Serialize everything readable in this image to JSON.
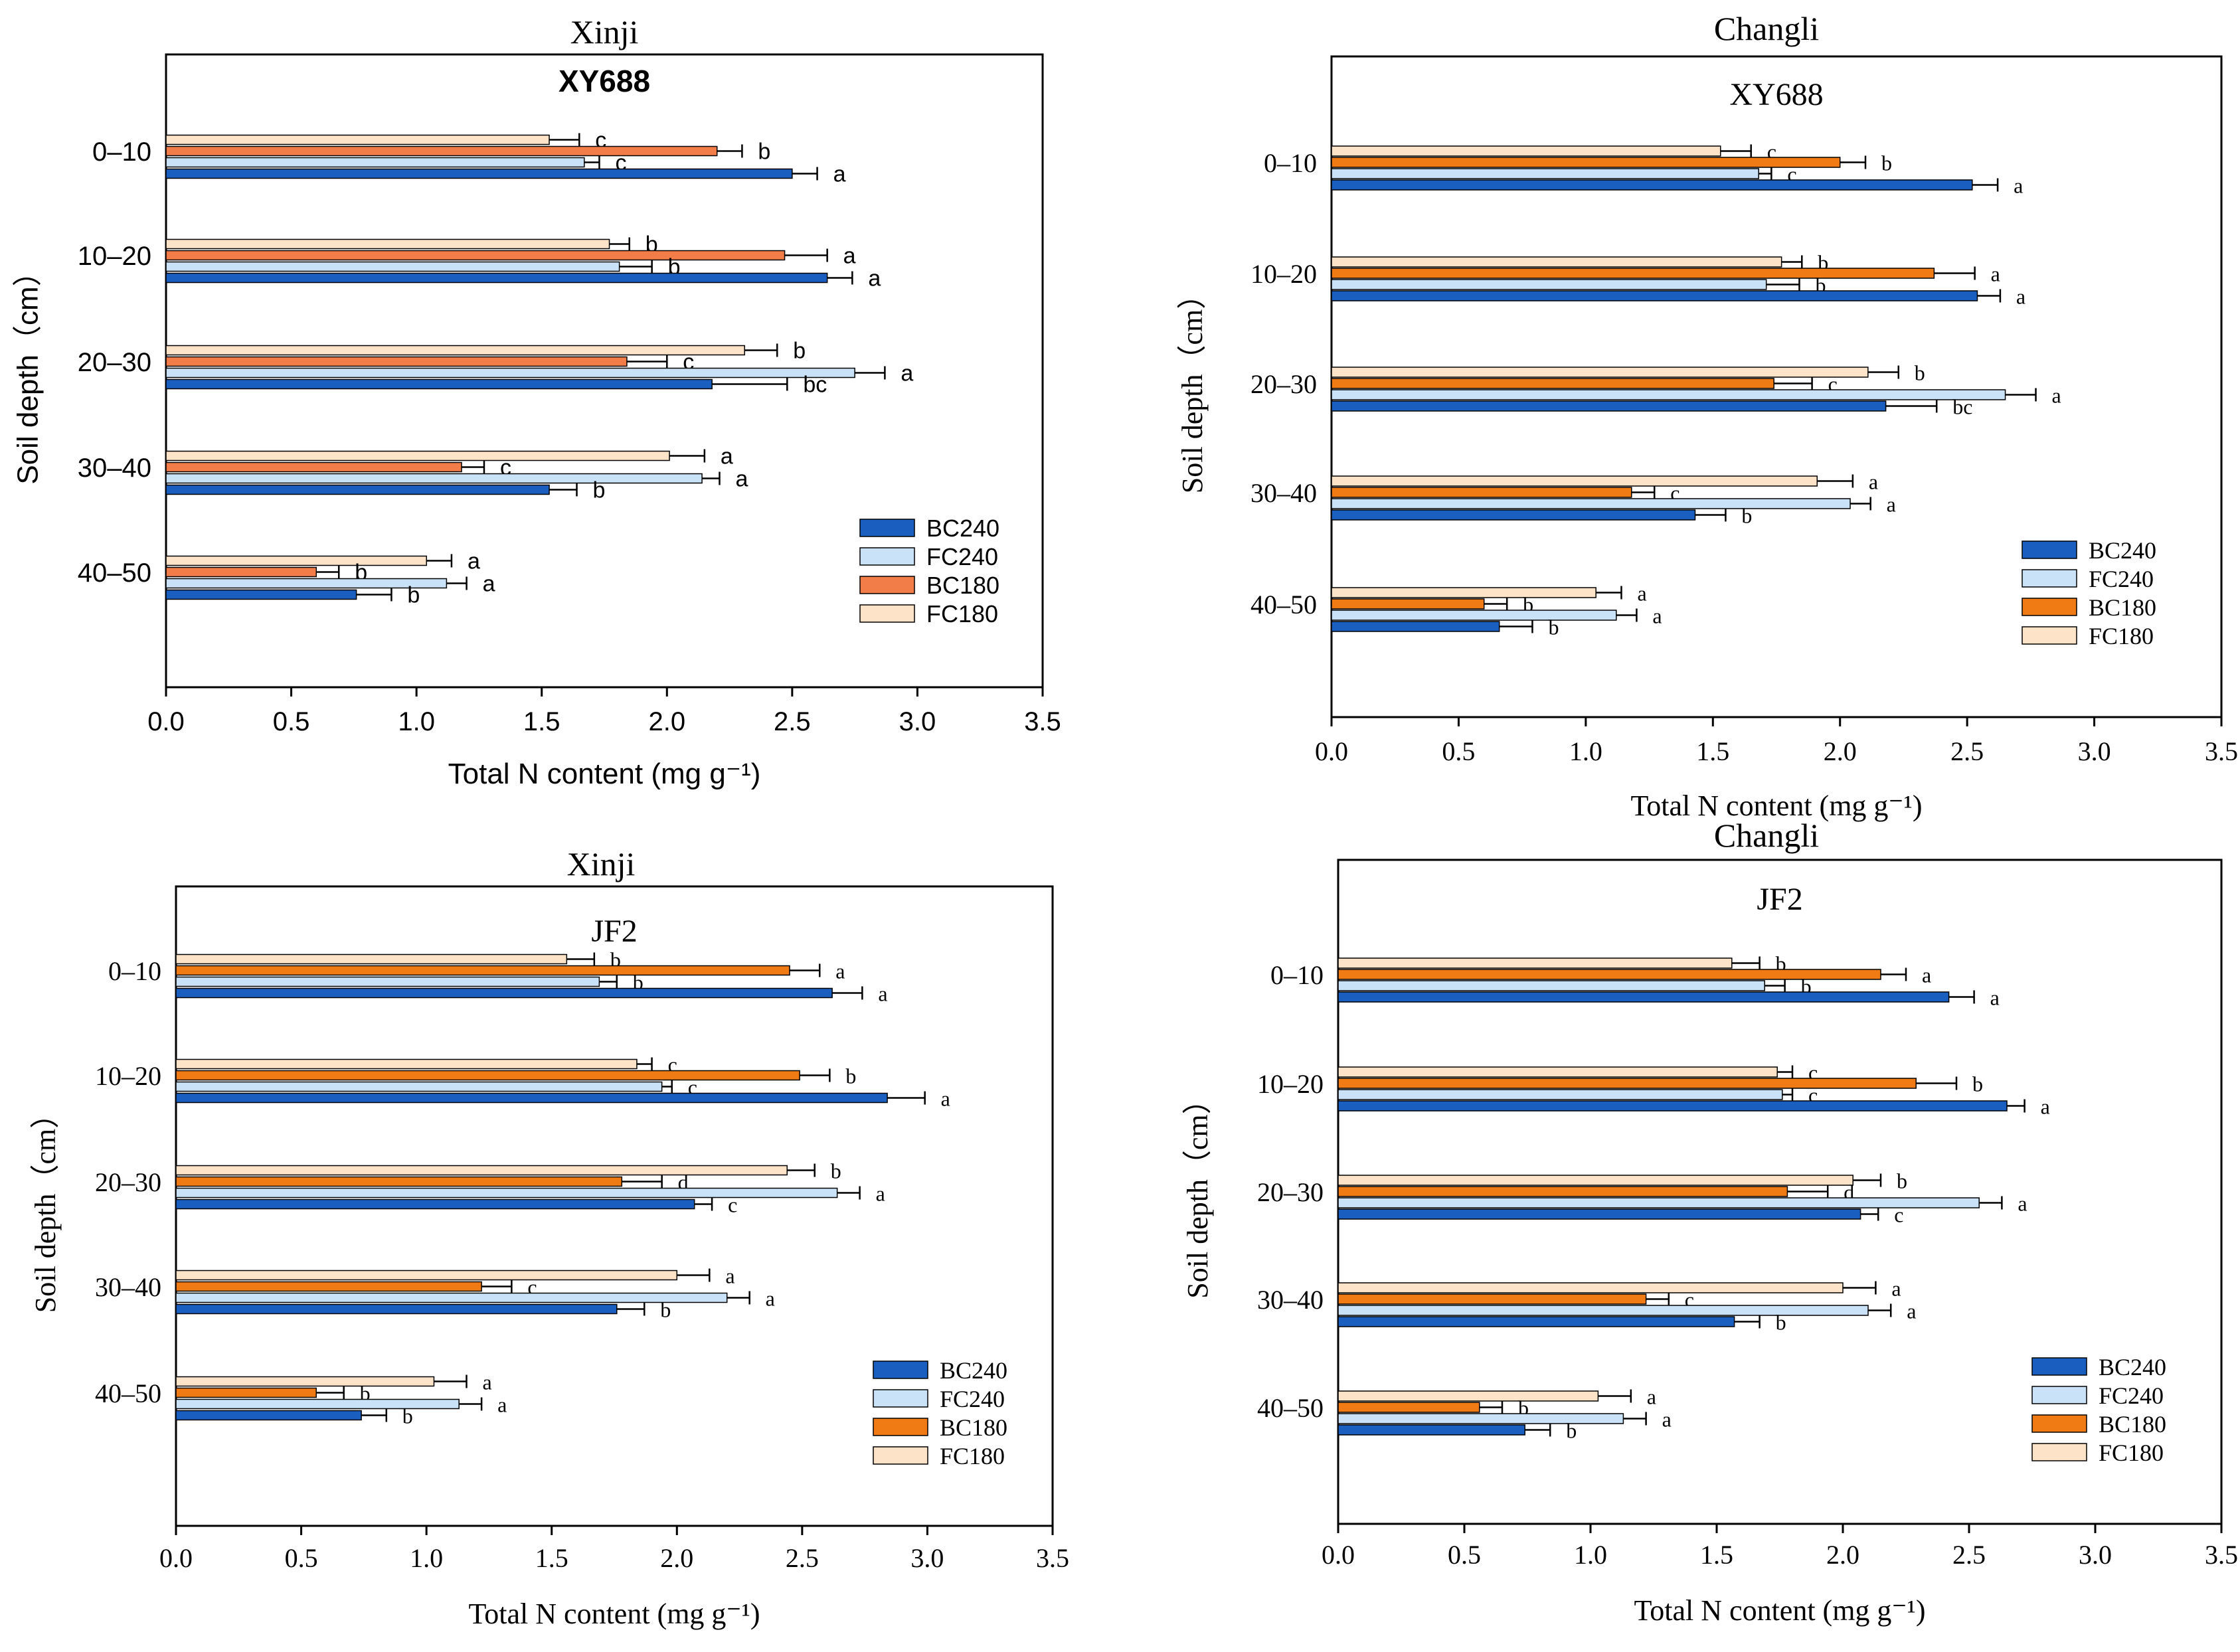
{
  "colors": {
    "BC240": "#1a5fbf",
    "FC240": "#c9e2f7",
    "BC180_p1": "#f27d48",
    "BC180": "#f07b14",
    "FC180": "#fde3c8",
    "axis": "#000000"
  },
  "chart_data": [
    {
      "type": "bar",
      "orientation": "horizontal",
      "site": "Xinji",
      "title": "XY688",
      "xlabel": "Total N content (mg g⁻¹)",
      "ylabel": "Soil depth（cm）",
      "xlim": [
        0,
        3.5
      ],
      "xticks": [
        "0.0",
        "0.5",
        "1.0",
        "1.5",
        "2.0",
        "2.5",
        "3.0",
        "3.5"
      ],
      "categories": [
        "0–10",
        "10–20",
        "20–30",
        "30–40",
        "40–50"
      ],
      "legend_position": "lower-right",
      "series": [
        {
          "name": "BC240",
          "values": [
            2.5,
            2.64,
            2.18,
            1.53,
            0.76
          ],
          "errors": [
            0.1,
            0.1,
            0.3,
            0.11,
            0.14
          ],
          "letters": [
            "a",
            "a",
            "bc",
            "b",
            "b"
          ]
        },
        {
          "name": "FC240",
          "values": [
            1.67,
            1.81,
            2.75,
            2.14,
            1.12
          ],
          "errors": [
            0.06,
            0.13,
            0.12,
            0.07,
            0.08
          ],
          "letters": [
            "c",
            "b",
            "a",
            "a",
            "a"
          ]
        },
        {
          "name": "BC180",
          "values": [
            2.2,
            2.47,
            1.84,
            1.18,
            0.6
          ],
          "errors": [
            0.1,
            0.17,
            0.16,
            0.09,
            0.09
          ],
          "letters": [
            "b",
            "a",
            "c",
            "c",
            "b"
          ]
        },
        {
          "name": "FC180",
          "values": [
            1.53,
            1.77,
            2.31,
            2.01,
            1.04
          ],
          "errors": [
            0.12,
            0.08,
            0.13,
            0.14,
            0.1
          ],
          "letters": [
            "c",
            "b",
            "b",
            "a",
            "a"
          ]
        }
      ]
    },
    {
      "type": "bar",
      "orientation": "horizontal",
      "site": "Changli",
      "title": "XY688",
      "xlabel": "Total N content (mg g⁻¹)",
      "ylabel": "Soil depth（cm）",
      "xlim": [
        0,
        3.5
      ],
      "xticks": [
        "0.0",
        "0.5",
        "1.0",
        "1.5",
        "2.0",
        "2.5",
        "3.0",
        "3.5"
      ],
      "categories": [
        "0–10",
        "10–20",
        "20–30",
        "30–40",
        "40–50"
      ],
      "legend_position": "lower-right",
      "series": [
        {
          "name": "BC240",
          "values": [
            2.52,
            2.54,
            2.18,
            1.43,
            0.66
          ],
          "errors": [
            0.1,
            0.09,
            0.2,
            0.12,
            0.13
          ],
          "letters": [
            "a",
            "a",
            "bc",
            "b",
            "b"
          ]
        },
        {
          "name": "FC240",
          "values": [
            1.68,
            1.71,
            2.65,
            2.04,
            1.12
          ],
          "errors": [
            0.05,
            0.13,
            0.12,
            0.08,
            0.08
          ],
          "letters": [
            "c",
            "b",
            "a",
            "a",
            "a"
          ]
        },
        {
          "name": "BC180",
          "values": [
            2.0,
            2.37,
            1.74,
            1.18,
            0.6
          ],
          "errors": [
            0.1,
            0.16,
            0.15,
            0.09,
            0.09
          ],
          "letters": [
            "b",
            "a",
            "c",
            "c",
            "b"
          ]
        },
        {
          "name": "FC180",
          "values": [
            1.53,
            1.77,
            2.11,
            1.91,
            1.04
          ],
          "errors": [
            0.12,
            0.08,
            0.12,
            0.14,
            0.1
          ],
          "letters": [
            "c",
            "b",
            "b",
            "a",
            "a"
          ]
        }
      ]
    },
    {
      "type": "bar",
      "orientation": "horizontal",
      "site": "Xinji",
      "title": "JF2",
      "xlabel": "Total N content (mg g⁻¹)",
      "ylabel": "Soil depth（cm）",
      "xlim": [
        0,
        3.5
      ],
      "xticks": [
        "0.0",
        "0.5",
        "1.0",
        "1.5",
        "2.0",
        "2.5",
        "3.0",
        "3.5"
      ],
      "categories": [
        "0–10",
        "10–20",
        "20–30",
        "30–40",
        "40–50"
      ],
      "legend_position": "lower-right",
      "series": [
        {
          "name": "BC240",
          "values": [
            2.62,
            2.84,
            2.07,
            1.76,
            0.74
          ],
          "errors": [
            0.12,
            0.15,
            0.07,
            0.11,
            0.1
          ],
          "letters": [
            "a",
            "a",
            "c",
            "b",
            "b"
          ]
        },
        {
          "name": "FC240",
          "values": [
            1.69,
            1.94,
            2.64,
            2.2,
            1.13
          ],
          "errors": [
            0.07,
            0.04,
            0.09,
            0.09,
            0.09
          ],
          "letters": [
            "b",
            "c",
            "a",
            "a",
            "a"
          ]
        },
        {
          "name": "BC180",
          "values": [
            2.45,
            2.49,
            1.78,
            1.22,
            0.56
          ],
          "errors": [
            0.12,
            0.12,
            0.16,
            0.12,
            0.11
          ],
          "letters": [
            "a",
            "b",
            "d",
            "c",
            "b"
          ]
        },
        {
          "name": "FC180",
          "values": [
            1.56,
            1.84,
            2.44,
            2.0,
            1.03
          ],
          "errors": [
            0.11,
            0.06,
            0.11,
            0.13,
            0.13
          ],
          "letters": [
            "b",
            "c",
            "b",
            "a",
            "a"
          ]
        }
      ]
    },
    {
      "type": "bar",
      "orientation": "horizontal",
      "site": "Changli",
      "title": "JF2",
      "xlabel": "Total N content (mg g⁻¹)",
      "ylabel": "Soil depth（cm）",
      "xlim": [
        0,
        3.5
      ],
      "xticks": [
        "0.0",
        "0.5",
        "1.0",
        "1.5",
        "2.0",
        "2.5",
        "3.0",
        "3.5"
      ],
      "categories": [
        "0–10",
        "10–20",
        "20–30",
        "30–40",
        "40–50"
      ],
      "legend_position": "lower-right",
      "series": [
        {
          "name": "BC240",
          "values": [
            2.42,
            2.65,
            2.07,
            1.57,
            0.74
          ],
          "errors": [
            0.1,
            0.07,
            0.07,
            0.1,
            0.1
          ],
          "letters": [
            "a",
            "a",
            "c",
            "b",
            "b"
          ]
        },
        {
          "name": "FC240",
          "values": [
            1.69,
            1.76,
            2.54,
            2.1,
            1.13
          ],
          "errors": [
            0.08,
            0.04,
            0.09,
            0.09,
            0.09
          ],
          "letters": [
            "b",
            "c",
            "a",
            "a",
            "a"
          ]
        },
        {
          "name": "BC180",
          "values": [
            2.15,
            2.29,
            1.78,
            1.22,
            0.56
          ],
          "errors": [
            0.1,
            0.16,
            0.16,
            0.09,
            0.09
          ],
          "letters": [
            "a",
            "b",
            "d",
            "c",
            "b"
          ]
        },
        {
          "name": "FC180",
          "values": [
            1.56,
            1.74,
            2.04,
            2.0,
            1.03
          ],
          "errors": [
            0.11,
            0.06,
            0.11,
            0.13,
            0.13
          ],
          "letters": [
            "b",
            "c",
            "b",
            "a",
            "a"
          ]
        }
      ]
    }
  ]
}
